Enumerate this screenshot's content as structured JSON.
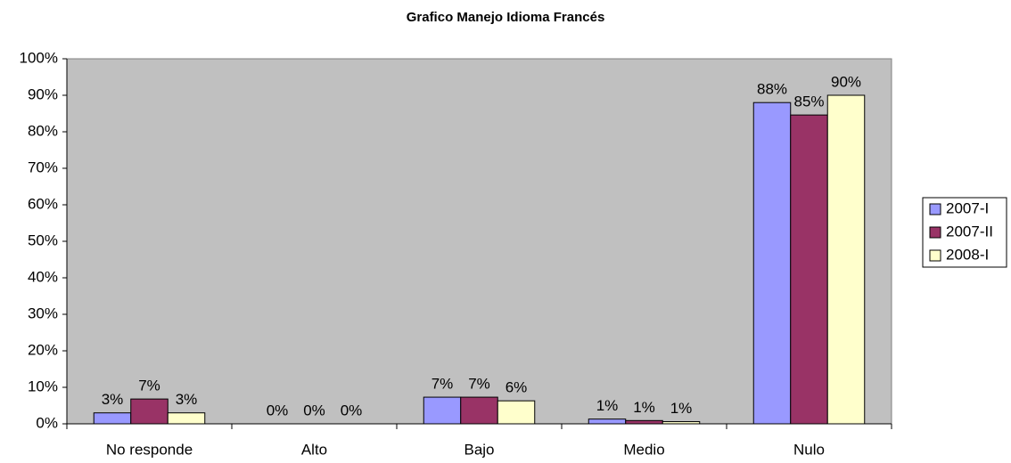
{
  "chart_data": {
    "type": "bar",
    "title": "Grafico Manejo Idioma Francés",
    "categories": [
      "No responde",
      "Alto",
      "Bajo",
      "Medio",
      "Nulo"
    ],
    "series": [
      {
        "name": "2007-I",
        "color": "#9999ff",
        "values": [
          3,
          0,
          7.3,
          1.3,
          88
        ],
        "value_labels": [
          "3%",
          "0%",
          "7%",
          "1%",
          "88%"
        ]
      },
      {
        "name": "2007-II",
        "color": "#993366",
        "values": [
          6.8,
          0,
          7.3,
          0.9,
          84.6
        ],
        "value_labels": [
          "7%",
          "0%",
          "7%",
          "1%",
          "85%"
        ]
      },
      {
        "name": "2008-I",
        "color": "#ffffcc",
        "values": [
          3,
          0,
          6.3,
          0.6,
          90
        ],
        "value_labels": [
          "3%",
          "0%",
          "6%",
          "1%",
          "90%"
        ]
      }
    ],
    "ylim": [
      0,
      100
    ],
    "yticks": [
      {
        "value": 0,
        "label": "0%"
      },
      {
        "value": 10,
        "label": "10%"
      },
      {
        "value": 20,
        "label": "20%"
      },
      {
        "value": 30,
        "label": "30%"
      },
      {
        "value": 40,
        "label": "40%"
      },
      {
        "value": 50,
        "label": "50%"
      },
      {
        "value": 60,
        "label": "60%"
      },
      {
        "value": 70,
        "label": "70%"
      },
      {
        "value": 80,
        "label": "80%"
      },
      {
        "value": 90,
        "label": "90%"
      },
      {
        "value": 100,
        "label": "100%"
      }
    ],
    "grid": false,
    "legend": "right"
  }
}
